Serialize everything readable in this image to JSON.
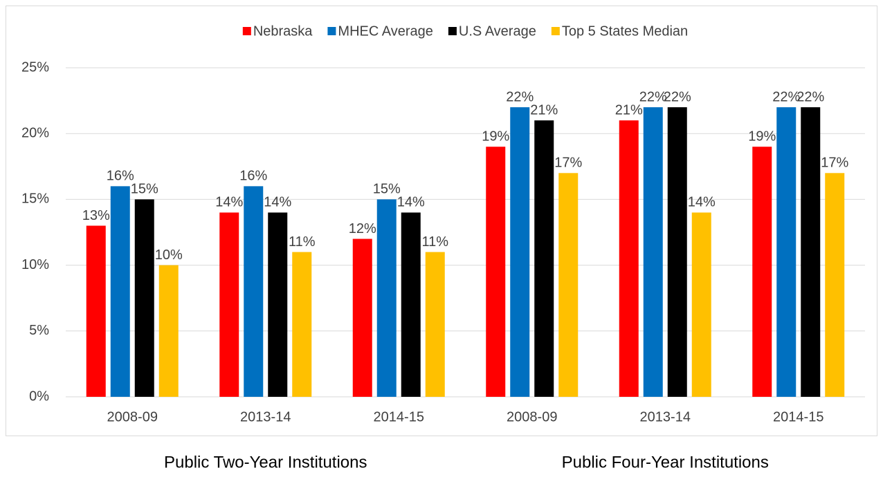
{
  "chart_data": {
    "type": "bar",
    "categories": [
      "2008-09",
      "2013-14",
      "2014-15",
      "2008-09",
      "2013-14",
      "2014-15"
    ],
    "group_labels": [
      "Public Two-Year Institutions",
      "Public Four-Year Institutions"
    ],
    "series": [
      {
        "name": "Nebraska",
        "color": "#ff0000",
        "values": [
          13,
          14,
          12,
          19,
          21,
          19
        ],
        "value_labels": [
          "13%",
          "14%",
          "12%",
          "19%",
          "21%",
          "19%"
        ]
      },
      {
        "name": "MHEC Average",
        "color": "#0070c0",
        "values": [
          16,
          16,
          15,
          22,
          22,
          22
        ],
        "value_labels": [
          "16%",
          "16%",
          "15%",
          "22%",
          "22%",
          "22%"
        ]
      },
      {
        "name": "U.S Average",
        "color": "#000000",
        "values": [
          15,
          14,
          14,
          21,
          22,
          22
        ],
        "value_labels": [
          "15%",
          "14%",
          "14%",
          "21%",
          "22%",
          "22%"
        ]
      },
      {
        "name": "Top 5 States Median",
        "color": "#ffc000",
        "values": [
          10,
          11,
          11,
          17,
          14,
          17
        ],
        "value_labels": [
          "10%",
          "11%",
          "11%",
          "17%",
          "14%",
          "17%"
        ]
      }
    ],
    "ylim": [
      0,
      25
    ],
    "yticks": [
      {
        "value": 0,
        "label": "0%"
      },
      {
        "value": 5,
        "label": "5%"
      },
      {
        "value": 10,
        "label": "10%"
      },
      {
        "value": 15,
        "label": "15%"
      },
      {
        "value": 20,
        "label": "20%"
      },
      {
        "value": 25,
        "label": "25%"
      }
    ],
    "grid": true,
    "legend": "top"
  }
}
